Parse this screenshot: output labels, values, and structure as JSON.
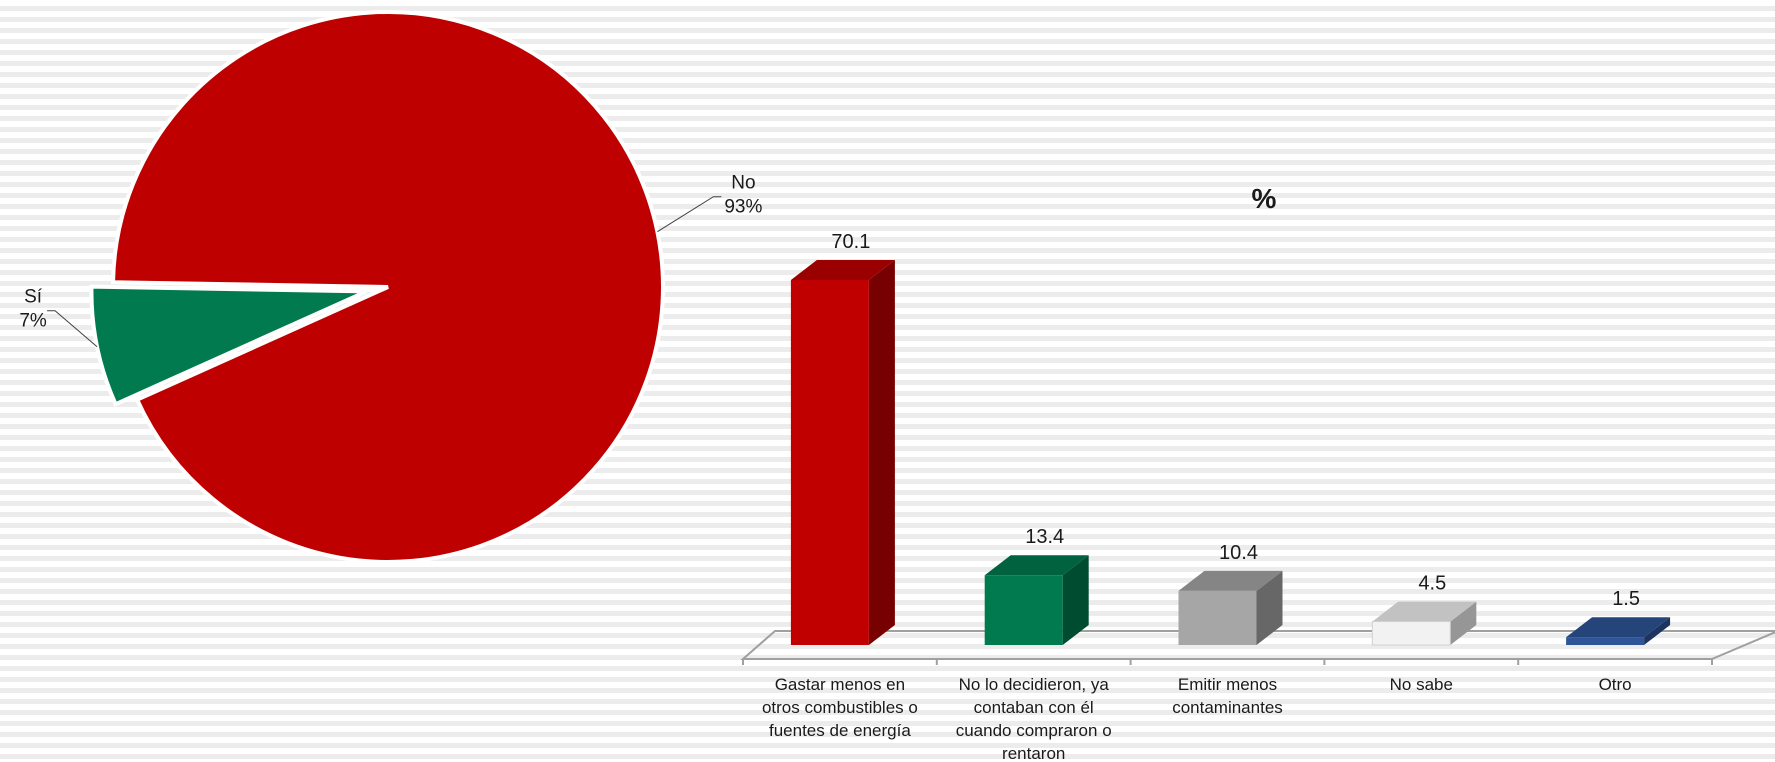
{
  "chart_data": [
    {
      "type": "pie",
      "slices": [
        {
          "label": "Sí",
          "value": 7,
          "value_text": "7%",
          "color": "#007a4e",
          "exploded": true
        },
        {
          "label": "No",
          "value": 93,
          "value_text": "93%",
          "color": "#be0000",
          "exploded": false
        }
      ]
    },
    {
      "type": "bar",
      "title": "%",
      "style": "3d",
      "categories": [
        "Gastar menos en otros combustibles o fuentes de energía",
        "No lo decidieron, ya contaban con él cuando compraron o rentaron",
        "Emitir menos contaminantes",
        "No sabe",
        "Otro"
      ],
      "category_lines": [
        [
          "Gastar menos en",
          "otros combustibles o",
          "fuentes de energía"
        ],
        [
          "No lo decidieron, ya",
          "contaban con él",
          "cuando compraron o",
          "rentaron"
        ],
        [
          "Emitir menos",
          "contaminantes"
        ],
        [
          "No sabe"
        ],
        [
          "Otro"
        ]
      ],
      "values": [
        70.1,
        13.4,
        10.4,
        4.5,
        1.5
      ],
      "value_labels": [
        "70.1",
        "13.4",
        "10.4",
        "4.5",
        "1.5"
      ],
      "colors": [
        "#c00000",
        "#007a4e",
        "#a6a6a6",
        "#f2f2f2",
        "#2e5597"
      ],
      "legend": false
    }
  ]
}
